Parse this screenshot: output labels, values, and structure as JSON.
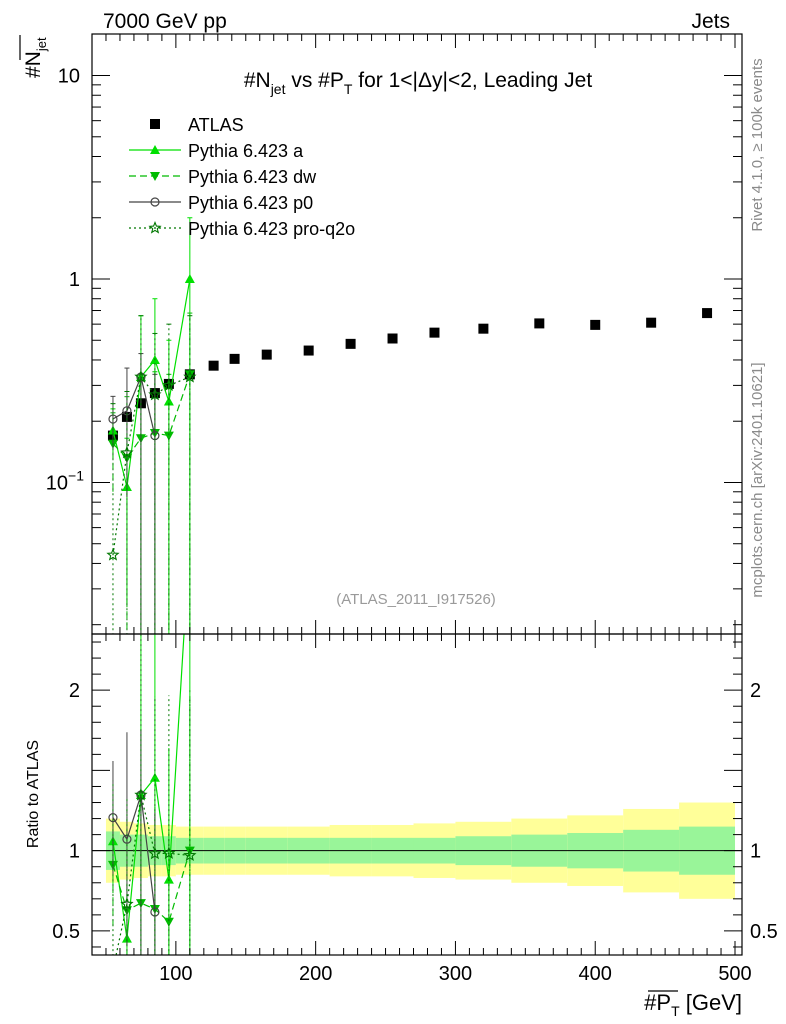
{
  "header": {
    "left": "7000 GeV pp",
    "right": "Jets"
  },
  "side_labels": {
    "rivet": "Rivet 4.1.0, ≥ 100k events",
    "mcplots": "mcplots.cern.ch [arXiv:2401.10621]"
  },
  "axis_labels": {
    "y_main": "#N_jet",
    "y_ratio": "Ratio to ATLAS",
    "x": "#P_T [GeV]"
  },
  "chart_data": {
    "type": "scatter",
    "title": "#N_jet vs #P_T for 1<|Δy|<2, Leading Jet",
    "title_parts": {
      "pre": "#N",
      "sub1": "jet",
      "mid": " vs #P",
      "sub2": "T",
      "post": " for 1<|Δy|<2, Leading Jet"
    },
    "watermark": "(ATLAS_2011_I917526)",
    "xlabel": "#P_T [GeV]",
    "ylabel": "#N_jet",
    "xlim": [
      40,
      505
    ],
    "ylim_main": [
      0.018,
      16
    ],
    "ylim_ratio": [
      0.35,
      2.35
    ],
    "yscale_main": "log",
    "x_ticks": [
      {
        "value": 100,
        "label": "100"
      },
      {
        "value": 200,
        "label": "200"
      },
      {
        "value": 300,
        "label": "300"
      },
      {
        "value": 400,
        "label": "400"
      },
      {
        "value": 500,
        "label": "500"
      }
    ],
    "y_ticks_main": [
      {
        "value": 10,
        "label": "10"
      },
      {
        "value": 1,
        "label": "1"
      },
      {
        "value": 0.1,
        "label": "10−1"
      }
    ],
    "y_ticks_ratio": [
      {
        "value": 0.5,
        "label": "0.5"
      },
      {
        "value": 1,
        "label": "1"
      },
      {
        "value": 2,
        "label": "2"
      }
    ],
    "legend": [
      {
        "key": "atlas",
        "label": "ATLAS"
      },
      {
        "key": "a",
        "label": "Pythia 6.423 a"
      },
      {
        "key": "dw",
        "label": "Pythia 6.423 dw"
      },
      {
        "key": "p0",
        "label": "Pythia 6.423 p0"
      },
      {
        "key": "pq2o",
        "label": "Pythia 6.423 pro-q2o"
      }
    ],
    "atlas": {
      "bins": [
        [
          50,
          60
        ],
        [
          60,
          70
        ],
        [
          70,
          80
        ],
        [
          80,
          90
        ],
        [
          90,
          100
        ],
        [
          100,
          120
        ],
        [
          120,
          135
        ],
        [
          135,
          150
        ],
        [
          150,
          180
        ],
        [
          180,
          210
        ],
        [
          210,
          240
        ],
        [
          240,
          270
        ],
        [
          270,
          300
        ],
        [
          300,
          340
        ],
        [
          340,
          380
        ],
        [
          380,
          420
        ],
        [
          420,
          460
        ],
        [
          460,
          500
        ]
      ],
      "x": [
        55,
        65,
        75,
        85,
        95,
        110,
        127,
        142,
        165,
        195,
        225,
        255,
        285,
        320,
        360,
        400,
        440,
        480
      ],
      "y": [
        0.17,
        0.21,
        0.245,
        0.275,
        0.305,
        0.34,
        0.375,
        0.405,
        0.425,
        0.445,
        0.48,
        0.51,
        0.545,
        0.57,
        0.605,
        0.595,
        0.61,
        0.68
      ],
      "band_inner": [
        0.12,
        0.1,
        0.1,
        0.09,
        0.09,
        0.08,
        0.08,
        0.08,
        0.08,
        0.08,
        0.08,
        0.08,
        0.08,
        0.09,
        0.1,
        0.11,
        0.13,
        0.15
      ],
      "band_outer": [
        0.2,
        0.18,
        0.17,
        0.16,
        0.16,
        0.15,
        0.15,
        0.15,
        0.15,
        0.15,
        0.16,
        0.16,
        0.17,
        0.18,
        0.2,
        0.22,
        0.26,
        0.3
      ]
    },
    "series": [
      {
        "key": "a",
        "name": "Pythia 6.423 a",
        "color": "#00e000",
        "dash": "",
        "marker": "triangle-up",
        "x": [
          55,
          65,
          75,
          85,
          95,
          110
        ],
        "y": [
          0.18,
          0.095,
          0.33,
          0.4,
          0.25,
          1.0
        ],
        "err_lo": [
          0.05,
          0.07,
          0.33,
          0.4,
          0.25,
          0.99
        ],
        "err_hi": [
          0.05,
          0.07,
          0.33,
          0.4,
          0.25,
          1.0
        ]
      },
      {
        "key": "dw",
        "name": "Pythia 6.423 dw",
        "color": "#00bb00",
        "dash": "7,4",
        "marker": "triangle-down",
        "x": [
          55,
          65,
          75,
          85,
          95,
          110
        ],
        "y": [
          0.155,
          0.132,
          0.165,
          0.175,
          0.17,
          0.34
        ],
        "err_lo": [
          0.065,
          0.132,
          0.165,
          0.175,
          0.17,
          0.34
        ],
        "err_hi": [
          0.065,
          0.132,
          0.165,
          0.175,
          0.17,
          0.34
        ]
      },
      {
        "key": "p0",
        "name": "Pythia 6.423 p0",
        "color": "#444444",
        "dash": "",
        "marker": "circle-open",
        "x": [
          55,
          65,
          75,
          85
        ],
        "y": [
          0.205,
          0.225,
          0.33,
          0.17
        ],
        "err_lo": [
          0.06,
          0.14,
          0.33,
          0.17
        ],
        "err_hi": [
          0.06,
          0.14,
          0.1,
          0.17
        ]
      },
      {
        "key": "pq2o",
        "name": "Pythia 6.423 pro-q2o",
        "color": "#007700",
        "dash": "2,3",
        "marker": "star-open",
        "x": [
          55,
          65,
          75,
          85,
          95,
          110
        ],
        "y": [
          0.044,
          0.14,
          0.33,
          0.27,
          0.3,
          0.33
        ],
        "err_lo": [
          0.044,
          0.14,
          0.33,
          0.27,
          0.3,
          0.33
        ],
        "err_hi": [
          0.2,
          0.14,
          0.33,
          0.27,
          0.3,
          0.33
        ]
      }
    ]
  }
}
